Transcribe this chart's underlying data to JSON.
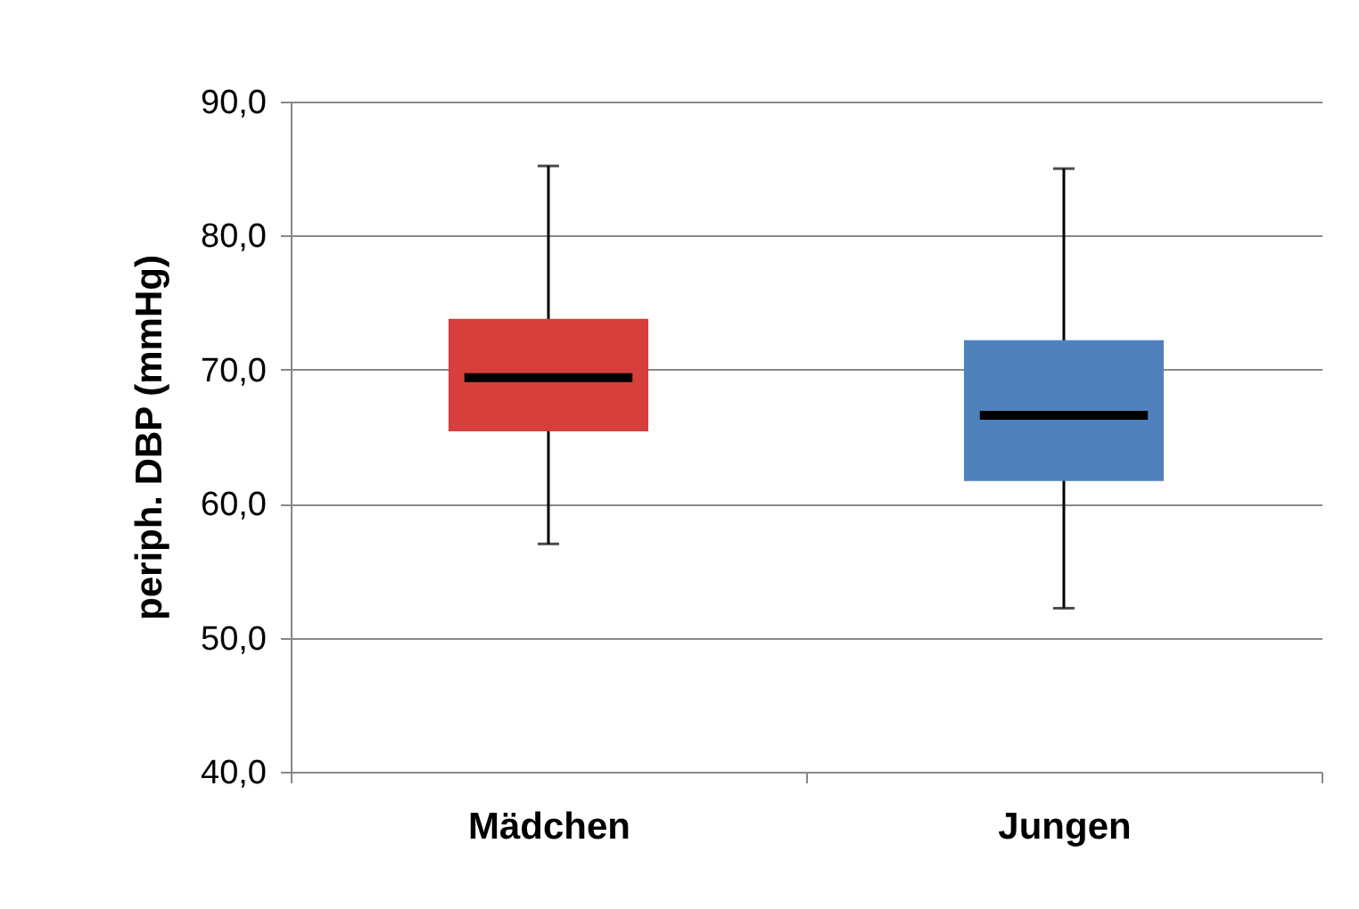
{
  "chart_data": {
    "type": "box",
    "ylabel": "periph. DBP (mmHg)",
    "categories": [
      "Mädchen",
      "Jungen"
    ],
    "boxes": [
      {
        "low": 57.0,
        "q1": 65.4,
        "median": 69.4,
        "q3": 73.8,
        "high": 85.2
      },
      {
        "low": 52.2,
        "q1": 61.7,
        "median": 66.6,
        "q3": 72.2,
        "high": 85.0
      }
    ],
    "colors": [
      "#d63f3c",
      "#4f81bd"
    ],
    "ylim": [
      40,
      90
    ],
    "yticks": [
      {
        "value": 40,
        "label": "40,0"
      },
      {
        "value": 50,
        "label": "50,0"
      },
      {
        "value": 60,
        "label": "60,0"
      },
      {
        "value": 70,
        "label": "70,0"
      },
      {
        "value": 80,
        "label": "80,0"
      },
      {
        "value": 90,
        "label": "90,0"
      }
    ],
    "grid": "y",
    "legend": false
  }
}
